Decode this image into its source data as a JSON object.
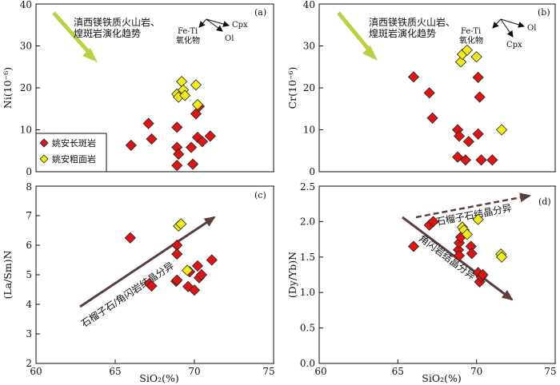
{
  "chart_data": [
    {
      "panel": "(a)",
      "type": "scatter",
      "xlabel": "",
      "ylabel": "Ni(10⁻⁶)",
      "xlim": [
        60,
        75
      ],
      "ylim": [
        0,
        40
      ],
      "yticks": [
        "0",
        "10",
        "20",
        "30",
        "40"
      ],
      "annotation_lines": [
        "滇西镁铁质火山岩、",
        "煌斑岩演化趋势"
      ],
      "vector_labels": [
        "Fe-Ti",
        "氧化物",
        "Cpx",
        "Ol"
      ],
      "legend": {
        "position": "bottom-left",
        "entries": [
          "姚安长斑岩",
          "姚安粗面岩"
        ]
      },
      "series": [
        {
          "name": "姚安长斑岩",
          "color": "#dd1515",
          "x": [
            66.0,
            67.1,
            67.3,
            68.9,
            68.9,
            69.0,
            68.9,
            69.8,
            69.9,
            70.1,
            70.2,
            70.3,
            70.5,
            71.0
          ],
          "y": [
            6.3,
            11.5,
            7.8,
            10.6,
            5.8,
            4.2,
            1.5,
            5.8,
            1.8,
            13.8,
            8.2,
            15.6,
            7.2,
            8.5
          ]
        },
        {
          "name": "姚安粗面岩",
          "color": "#f3ec1a",
          "x": [
            68.9,
            69.0,
            69.2,
            69.3,
            69.4,
            70.1,
            70.2
          ],
          "y": [
            18.5,
            17.8,
            21.5,
            19.5,
            18.2,
            20.7,
            16.0
          ]
        }
      ]
    },
    {
      "panel": "(b)",
      "type": "scatter",
      "xlabel": "",
      "ylabel": "Cr(10⁻⁶)",
      "xlim": [
        60,
        75
      ],
      "ylim": [
        0,
        40
      ],
      "yticks": [
        "0",
        "10",
        "20",
        "30",
        "40"
      ],
      "annotation_lines": [
        "滇西镁铁质火山岩、",
        "煌斑岩演化趋势"
      ],
      "vector_labels": [
        "Fe-Ti",
        "氧化物",
        "Ol",
        "Cpx"
      ],
      "series": [
        {
          "name": "姚安长斑岩",
          "color": "#dd1515",
          "x": [
            66.0,
            67.0,
            67.2,
            68.8,
            68.9,
            68.8,
            69.3,
            69.5,
            70.1,
            70.2,
            70.1,
            70.3,
            71.0
          ],
          "y": [
            22.6,
            18.8,
            12.8,
            10.0,
            8.5,
            3.5,
            2.8,
            7.2,
            22.5,
            17.8,
            9.0,
            2.8,
            2.8
          ]
        },
        {
          "name": "姚安粗面岩",
          "color": "#f3ec1a",
          "x": [
            69.0,
            69.1,
            69.4,
            70.0,
            71.6
          ],
          "y": [
            26.2,
            28.0,
            29.0,
            27.4,
            10.0
          ]
        }
      ]
    },
    {
      "panel": "(c)",
      "type": "scatter",
      "xlabel": "SiO₂(%)",
      "ylabel": "(La/Sm)N",
      "xlim": [
        60,
        75
      ],
      "ylim": [
        2,
        8
      ],
      "xticks": [
        "60",
        "65",
        "70",
        "75"
      ],
      "yticks": [
        "2",
        "3",
        "4",
        "5",
        "6",
        "7",
        "8"
      ],
      "trend_label": "石榴子石/角闪岩结晶分异",
      "series": [
        {
          "name": "姚安长斑岩",
          "color": "#dd1515",
          "x": [
            65.95,
            67.15,
            67.3,
            68.9,
            68.9,
            68.85,
            68.9,
            69.6,
            69.7,
            70.0,
            70.2,
            70.3,
            70.45,
            71.1
          ],
          "y": [
            6.25,
            4.7,
            4.62,
            6.0,
            5.7,
            4.78,
            4.82,
            4.6,
            5.1,
            4.48,
            5.3,
            4.9,
            5.0,
            5.5
          ]
        },
        {
          "name": "姚安粗面岩",
          "color": "#f3ec1a",
          "x": [
            69.0,
            69.15,
            69.55
          ],
          "y": [
            6.65,
            6.72,
            5.15
          ]
        }
      ]
    },
    {
      "panel": "(d)",
      "type": "scatter",
      "xlabel": "SiO₂(%)",
      "ylabel": "(Dy/Yb)N",
      "xlim": [
        60,
        75
      ],
      "ylim": [
        0.0,
        2.5
      ],
      "xticks": [
        "60",
        "65",
        "70",
        "75"
      ],
      "yticks": [
        "0.0",
        "0.5",
        "1.0",
        "1.5",
        "2.0",
        "2.5"
      ],
      "trend_labels": [
        "石榴子石结晶分异",
        "角闪岩结晶分异"
      ],
      "series": [
        {
          "name": "姚安长斑岩",
          "color": "#dd1515",
          "x": [
            66.0,
            67.0,
            67.25,
            68.85,
            68.9,
            68.9,
            69.0,
            69.65,
            69.7,
            70.1,
            70.2,
            70.3,
            70.4
          ],
          "y": [
            1.65,
            1.95,
            2.0,
            1.6,
            1.7,
            1.52,
            1.78,
            1.65,
            1.55,
            1.28,
            1.15,
            1.22,
            1.25
          ]
        },
        {
          "name": "姚安粗面岩",
          "color": "#f3ec1a",
          "x": [
            69.1,
            69.2,
            69.4,
            70.1,
            71.55,
            71.6
          ],
          "y": [
            1.92,
            1.88,
            1.82,
            2.03,
            1.54,
            1.5
          ]
        }
      ]
    }
  ]
}
